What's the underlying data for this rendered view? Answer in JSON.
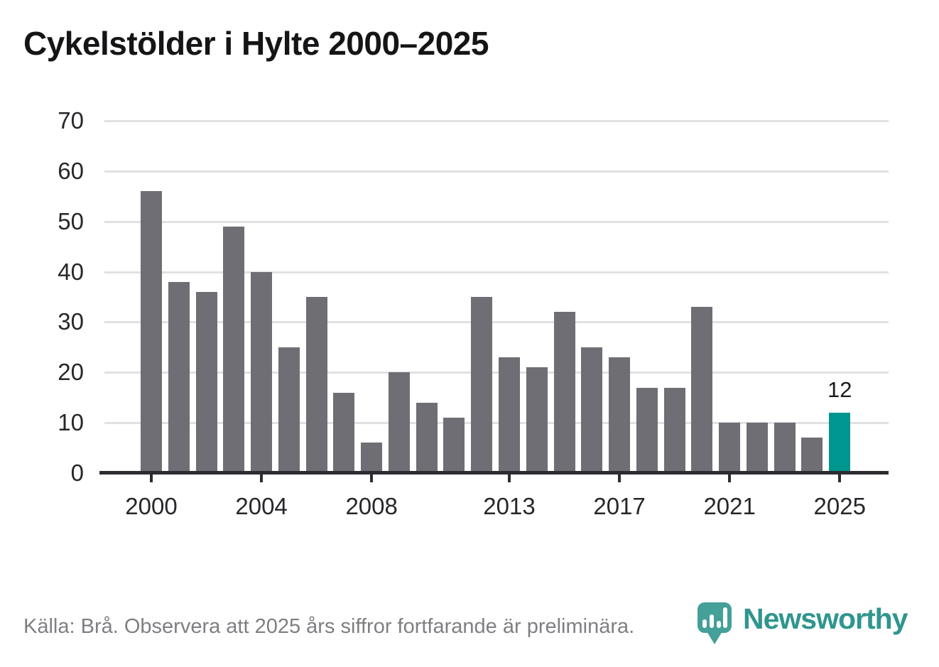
{
  "title": "Cykelstölder i Hylte 2000–2025",
  "footer": {
    "source_note": "Källa: Brå. Observera att 2025 års siffror fortfarande är preliminära."
  },
  "logo": {
    "brand": "Newsworthy"
  },
  "chart_data": {
    "type": "bar",
    "title": "Cykelstölder i Hylte 2000–2025",
    "x": [
      2000,
      2001,
      2002,
      2003,
      2004,
      2005,
      2006,
      2007,
      2008,
      2009,
      2010,
      2011,
      2012,
      2013,
      2014,
      2015,
      2016,
      2017,
      2018,
      2019,
      2020,
      2021,
      2022,
      2023,
      2024,
      2025
    ],
    "values": [
      56,
      38,
      36,
      49,
      40,
      25,
      35,
      16,
      6,
      20,
      14,
      11,
      35,
      23,
      21,
      32,
      25,
      23,
      17,
      17,
      33,
      10,
      10,
      10,
      7,
      12
    ],
    "highlight_year": 2025,
    "highlight_label": "12",
    "xlabel": "",
    "ylabel": "",
    "ylim": [
      0,
      70
    ],
    "yticks": [
      0,
      10,
      20,
      30,
      40,
      50,
      60,
      70
    ],
    "xticks": [
      2000,
      2004,
      2008,
      2013,
      2017,
      2021,
      2025
    ],
    "grid": true,
    "legend": "none",
    "colors": {
      "bar": "#6e6e74",
      "highlight": "#009690",
      "gridline": "#e1e1e3",
      "axis": "#2d2d31",
      "tick_label": "#27272b",
      "title": "#151517",
      "footer_text": "#7f7f83",
      "logo_teal": "#2f968e"
    }
  }
}
